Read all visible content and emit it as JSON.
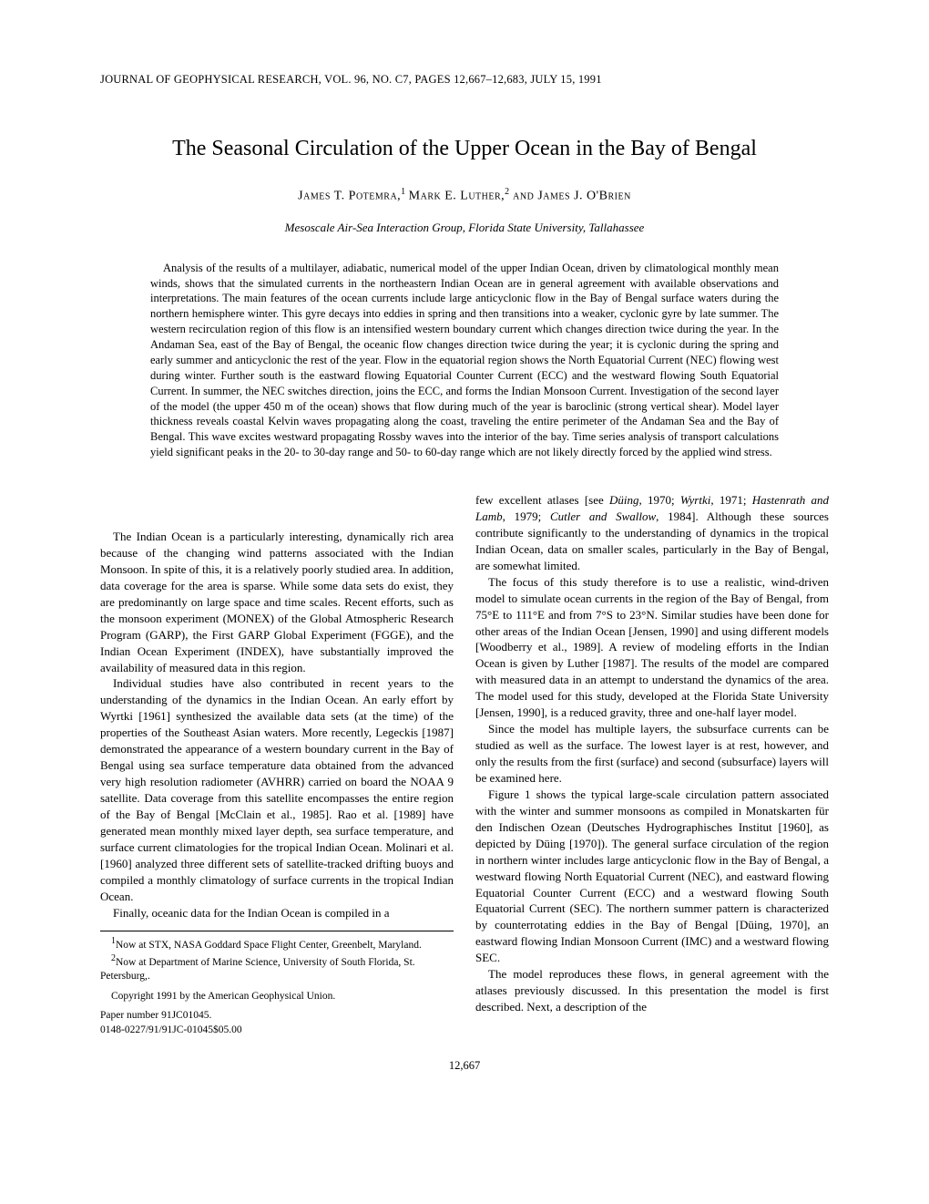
{
  "journal_header": "JOURNAL OF GEOPHYSICAL RESEARCH, VOL. 96, NO. C7, PAGES 12,667–12,683, JULY 15, 1991",
  "title": "The Seasonal Circulation of the Upper Ocean in the Bay of Bengal",
  "authors": {
    "a1": "James T. Potemra,",
    "s1": "1",
    "a2": " Mark E. Luther,",
    "s2": "2",
    "conj": " and ",
    "a3": "James J. O'Brien"
  },
  "affiliation": "Mesoscale Air-Sea Interaction Group, Florida State University, Tallahassee",
  "abstract": "Analysis of the results of a multilayer, adiabatic, numerical model of the upper Indian Ocean, driven by climatological monthly mean winds, shows that the simulated currents in the northeastern Indian Ocean are in general agreement with available observations and interpretations. The main features of the ocean currents include large anticyclonic flow in the Bay of Bengal surface waters during the northern hemisphere winter. This gyre decays into eddies in spring and then transitions into a weaker, cyclonic gyre by late summer. The western recirculation region of this flow is an intensified western boundary current which changes direction twice during the year. In the Andaman Sea, east of the Bay of Bengal, the oceanic flow changes direction twice during the year; it is cyclonic during the spring and early summer and anticyclonic the rest of the year. Flow in the equatorial region shows the North Equatorial Current (NEC) flowing west during winter. Further south is the eastward flowing Equatorial Counter Current (ECC) and the westward flowing South Equatorial Current. In summer, the NEC switches direction, joins the ECC, and forms the Indian Monsoon Current. Investigation of the second layer of the model (the upper 450 m of the ocean) shows that flow during much of the year is baroclinic (strong vertical shear). Model layer thickness reveals coastal Kelvin waves propagating along the coast, traveling the entire perimeter of the Andaman Sea and the Bay of Bengal. This wave excites westward propagating Rossby waves into the interior of the bay. Time series analysis of transport calculations yield significant peaks in the 20- to 30-day range and 50- to 60-day range which are not likely directly forced by the applied wind stress.",
  "body": {
    "p1": "The Indian Ocean is a particularly interesting, dynamically rich area because of the changing wind patterns associated with the Indian Monsoon. In spite of this, it is a relatively poorly studied area. In addition, data coverage for the area is sparse. While some data sets do exist, they are predominantly on large space and time scales. Recent efforts, such as the monsoon experiment (MONEX) of the Global Atmospheric Research Program (GARP), the First GARP Global Experiment (FGGE), and the Indian Ocean Experiment (INDEX), have substantially improved the availability of measured data in this region.",
    "p2": "Individual studies have also contributed in recent years to the understanding of the dynamics in the Indian Ocean. An early effort by Wyrtki [1961] synthesized the available data sets (at the time) of the properties of the Southeast Asian waters. More recently, Legeckis [1987] demonstrated the appearance of a western boundary current in the Bay of Bengal using sea surface temperature data obtained from the advanced very high resolution radiometer (AVHRR) carried on board the NOAA 9 satellite. Data coverage from this satellite encompasses the entire region of the Bay of Bengal [McClain et al., 1985]. Rao et al. [1989] have generated mean monthly mixed layer depth, sea surface temperature, and surface current climatologies for the tropical Indian Ocean. Molinari et al. [1960] analyzed three different sets of satellite-tracked drifting buoys and compiled a monthly climatology of surface currents in the tropical Indian Ocean.",
    "p3": "Finally, oceanic data for the Indian Ocean is compiled in a few excellent atlases [see Düing, 1970; Wyrtki, 1971; Hastenrath and Lamb, 1979; Cutler and Swallow, 1984]. Although these sources contribute significantly to the understanding of dynamics in the tropical Indian Ocean, data on smaller scales, particularly in the Bay of Bengal, are somewhat limited.",
    "p4": "The focus of this study therefore is to use a realistic, wind-driven model to simulate ocean currents in the region of the Bay of Bengal, from 75°E to 111°E and from 7°S to 23°N. Similar studies have been done for other areas of the Indian Ocean [Jensen, 1990] and using different models [Woodberry et al., 1989]. A review of modeling efforts in the Indian Ocean is given by Luther [1987]. The results of the model are compared with measured data in an attempt to understand the dynamics of the area. The model used for this study, developed at the Florida State University [Jensen, 1990], is a reduced gravity, three and one-half layer model.",
    "p5": "Since the model has multiple layers, the subsurface currents can be studied as well as the surface. The lowest layer is at rest, however, and only the results from the first (surface) and second (subsurface) layers will be examined here.",
    "p6": "Figure 1 shows the typical large-scale circulation pattern associated with the winter and summer monsoons as compiled in Monatskarten für den Indischen Ozean (Deutsches Hydrographisches Institut [1960], as depicted by Düing [1970]). The general surface circulation of the region in northern winter includes large anticyclonic flow in the Bay of Bengal, a westward flowing North Equatorial Current (NEC), and eastward flowing Equatorial Counter Current (ECC) and a westward flowing South Equatorial Current (SEC). The northern summer pattern is characterized by counterrotating eddies in the Bay of Bengal [Düing, 1970], an eastward flowing Indian Monsoon Current (IMC) and a westward flowing SEC.",
    "p7": "The model reproduces these flows, in general agreement with the atlases previously discussed. In this presentation the model is first described. Next, a description of the"
  },
  "footnotes": {
    "f1_sup": "1",
    "f1": "Now at STX, NASA Goddard Space Flight Center, Greenbelt, Maryland.",
    "f2_sup": "2",
    "f2": "Now at Department of Marine Science, University of South Florida, St. Petersburg,.",
    "copyright": "Copyright 1991 by the American Geophysical Union.",
    "paper_no": "Paper number 91JC01045.",
    "issn": "0148-0227/91/91JC-01045$05.00"
  },
  "page_number": "12,667"
}
